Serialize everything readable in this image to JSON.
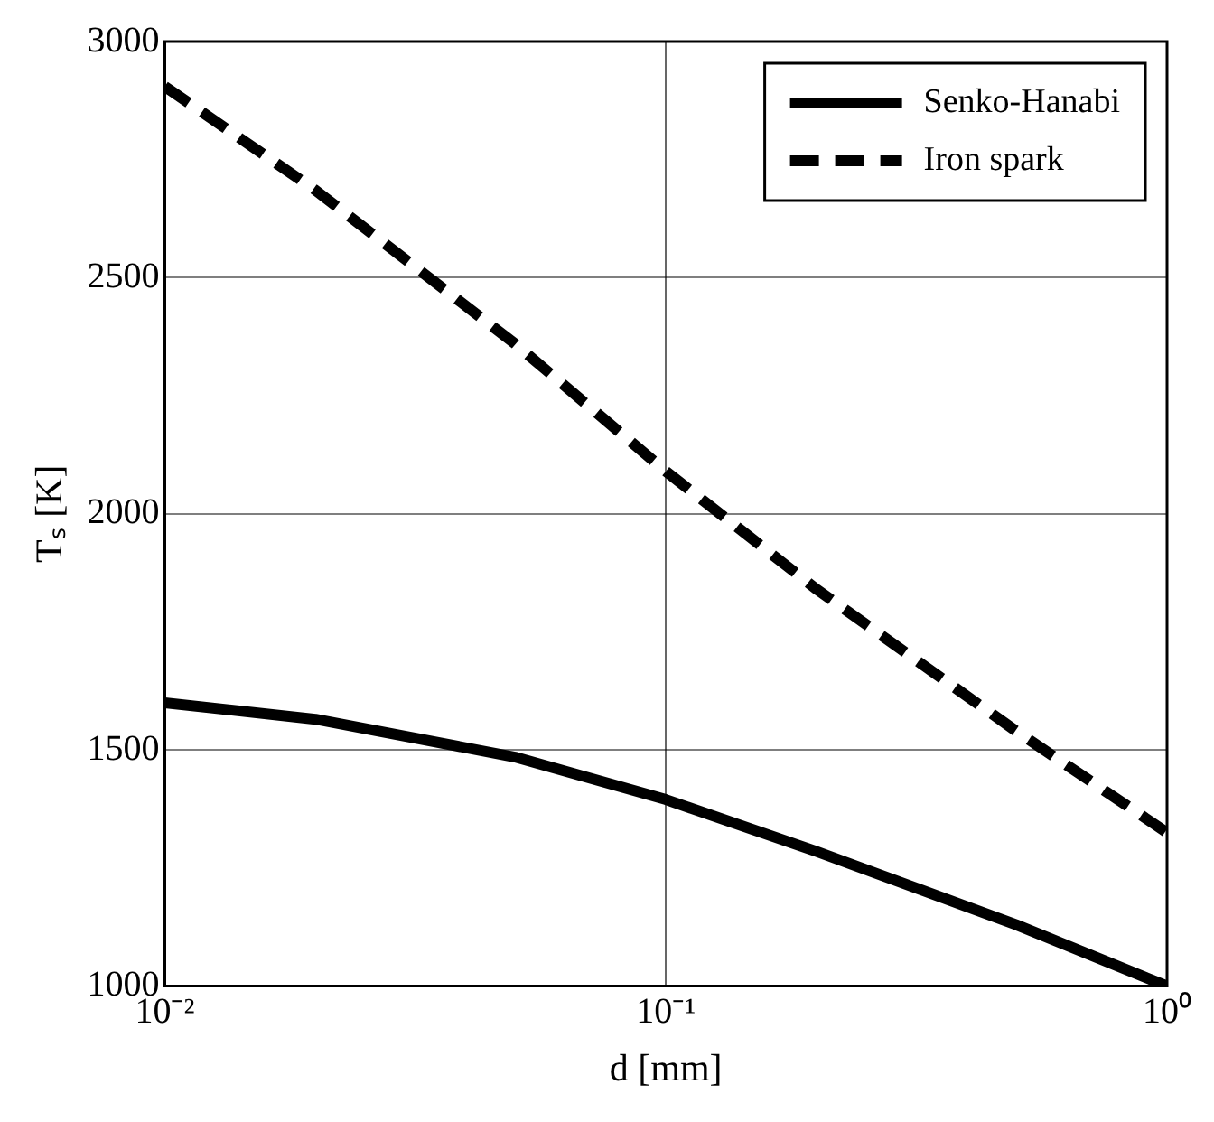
{
  "chart_data": {
    "type": "line",
    "xlabel": "d [mm]",
    "ylabel": "Tₛ [K]",
    "log": "x",
    "grid": true,
    "legend": "top right",
    "marker": "none",
    "xlim": [
      0.01,
      1
    ],
    "xticks": [
      {
        "value": 0.01,
        "label": "10⁻²"
      },
      {
        "value": 0.1,
        "label": "10⁻¹"
      },
      {
        "value": 1,
        "label": "10⁰"
      }
    ],
    "ylim": [
      1000,
      3000
    ],
    "yticks": [
      1000,
      1500,
      2000,
      2500,
      3000
    ],
    "series": [
      {
        "name": "Senko-Hanabi",
        "color": "#000000",
        "line_style": "solid",
        "x": [
          0.01,
          0.02,
          0.05,
          0.1,
          0.2,
          0.5,
          1
        ],
        "values": [
          1600,
          1565,
          1485,
          1395,
          1285,
          1130,
          1000
        ]
      },
      {
        "name": "Iron spark",
        "color": "#000000",
        "line_style": "dashed",
        "x": [
          0.01,
          0.02,
          0.05,
          0.1,
          0.2,
          0.5,
          1
        ],
        "values": [
          2905,
          2685,
          2360,
          2090,
          1840,
          1540,
          1325
        ]
      }
    ]
  }
}
